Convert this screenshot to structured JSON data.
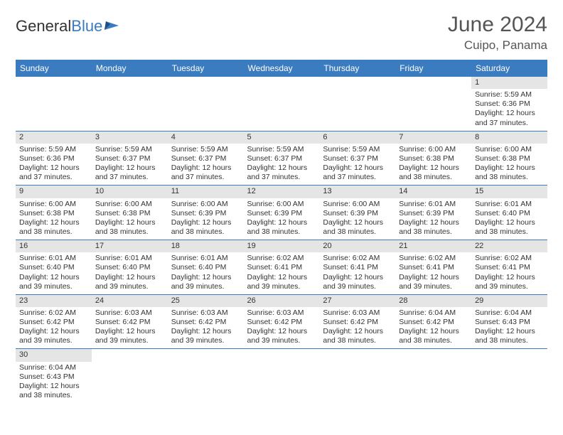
{
  "logo": {
    "text1": "General",
    "text2": "Blue"
  },
  "title": "June 2024",
  "location": "Cuipo, Panama",
  "columns": [
    "Sunday",
    "Monday",
    "Tuesday",
    "Wednesday",
    "Thursday",
    "Friday",
    "Saturday"
  ],
  "colors": {
    "header_bg": "#3b7bbf",
    "header_text": "#ffffff",
    "daynum_bg": "#e5e5e5",
    "border": "#3b7bbf",
    "text": "#333333",
    "title_text": "#555555"
  },
  "fonts": {
    "month_title_pt": 30,
    "location_pt": 17,
    "column_header_pt": 12,
    "daynum_pt": 11,
    "info_pt": 10.5
  },
  "weeks": [
    [
      null,
      null,
      null,
      null,
      null,
      null,
      {
        "n": "1",
        "sr": "Sunrise: 5:59 AM",
        "ss": "Sunset: 6:36 PM",
        "dl": "Daylight: 12 hours and 37 minutes."
      }
    ],
    [
      {
        "n": "2",
        "sr": "Sunrise: 5:59 AM",
        "ss": "Sunset: 6:36 PM",
        "dl": "Daylight: 12 hours and 37 minutes."
      },
      {
        "n": "3",
        "sr": "Sunrise: 5:59 AM",
        "ss": "Sunset: 6:37 PM",
        "dl": "Daylight: 12 hours and 37 minutes."
      },
      {
        "n": "4",
        "sr": "Sunrise: 5:59 AM",
        "ss": "Sunset: 6:37 PM",
        "dl": "Daylight: 12 hours and 37 minutes."
      },
      {
        "n": "5",
        "sr": "Sunrise: 5:59 AM",
        "ss": "Sunset: 6:37 PM",
        "dl": "Daylight: 12 hours and 37 minutes."
      },
      {
        "n": "6",
        "sr": "Sunrise: 5:59 AM",
        "ss": "Sunset: 6:37 PM",
        "dl": "Daylight: 12 hours and 37 minutes."
      },
      {
        "n": "7",
        "sr": "Sunrise: 6:00 AM",
        "ss": "Sunset: 6:38 PM",
        "dl": "Daylight: 12 hours and 38 minutes."
      },
      {
        "n": "8",
        "sr": "Sunrise: 6:00 AM",
        "ss": "Sunset: 6:38 PM",
        "dl": "Daylight: 12 hours and 38 minutes."
      }
    ],
    [
      {
        "n": "9",
        "sr": "Sunrise: 6:00 AM",
        "ss": "Sunset: 6:38 PM",
        "dl": "Daylight: 12 hours and 38 minutes."
      },
      {
        "n": "10",
        "sr": "Sunrise: 6:00 AM",
        "ss": "Sunset: 6:38 PM",
        "dl": "Daylight: 12 hours and 38 minutes."
      },
      {
        "n": "11",
        "sr": "Sunrise: 6:00 AM",
        "ss": "Sunset: 6:39 PM",
        "dl": "Daylight: 12 hours and 38 minutes."
      },
      {
        "n": "12",
        "sr": "Sunrise: 6:00 AM",
        "ss": "Sunset: 6:39 PM",
        "dl": "Daylight: 12 hours and 38 minutes."
      },
      {
        "n": "13",
        "sr": "Sunrise: 6:00 AM",
        "ss": "Sunset: 6:39 PM",
        "dl": "Daylight: 12 hours and 38 minutes."
      },
      {
        "n": "14",
        "sr": "Sunrise: 6:01 AM",
        "ss": "Sunset: 6:39 PM",
        "dl": "Daylight: 12 hours and 38 minutes."
      },
      {
        "n": "15",
        "sr": "Sunrise: 6:01 AM",
        "ss": "Sunset: 6:40 PM",
        "dl": "Daylight: 12 hours and 38 minutes."
      }
    ],
    [
      {
        "n": "16",
        "sr": "Sunrise: 6:01 AM",
        "ss": "Sunset: 6:40 PM",
        "dl": "Daylight: 12 hours and 39 minutes."
      },
      {
        "n": "17",
        "sr": "Sunrise: 6:01 AM",
        "ss": "Sunset: 6:40 PM",
        "dl": "Daylight: 12 hours and 39 minutes."
      },
      {
        "n": "18",
        "sr": "Sunrise: 6:01 AM",
        "ss": "Sunset: 6:40 PM",
        "dl": "Daylight: 12 hours and 39 minutes."
      },
      {
        "n": "19",
        "sr": "Sunrise: 6:02 AM",
        "ss": "Sunset: 6:41 PM",
        "dl": "Daylight: 12 hours and 39 minutes."
      },
      {
        "n": "20",
        "sr": "Sunrise: 6:02 AM",
        "ss": "Sunset: 6:41 PM",
        "dl": "Daylight: 12 hours and 39 minutes."
      },
      {
        "n": "21",
        "sr": "Sunrise: 6:02 AM",
        "ss": "Sunset: 6:41 PM",
        "dl": "Daylight: 12 hours and 39 minutes."
      },
      {
        "n": "22",
        "sr": "Sunrise: 6:02 AM",
        "ss": "Sunset: 6:41 PM",
        "dl": "Daylight: 12 hours and 39 minutes."
      }
    ],
    [
      {
        "n": "23",
        "sr": "Sunrise: 6:02 AM",
        "ss": "Sunset: 6:42 PM",
        "dl": "Daylight: 12 hours and 39 minutes."
      },
      {
        "n": "24",
        "sr": "Sunrise: 6:03 AM",
        "ss": "Sunset: 6:42 PM",
        "dl": "Daylight: 12 hours and 39 minutes."
      },
      {
        "n": "25",
        "sr": "Sunrise: 6:03 AM",
        "ss": "Sunset: 6:42 PM",
        "dl": "Daylight: 12 hours and 39 minutes."
      },
      {
        "n": "26",
        "sr": "Sunrise: 6:03 AM",
        "ss": "Sunset: 6:42 PM",
        "dl": "Daylight: 12 hours and 39 minutes."
      },
      {
        "n": "27",
        "sr": "Sunrise: 6:03 AM",
        "ss": "Sunset: 6:42 PM",
        "dl": "Daylight: 12 hours and 38 minutes."
      },
      {
        "n": "28",
        "sr": "Sunrise: 6:04 AM",
        "ss": "Sunset: 6:42 PM",
        "dl": "Daylight: 12 hours and 38 minutes."
      },
      {
        "n": "29",
        "sr": "Sunrise: 6:04 AM",
        "ss": "Sunset: 6:43 PM",
        "dl": "Daylight: 12 hours and 38 minutes."
      }
    ],
    [
      {
        "n": "30",
        "sr": "Sunrise: 6:04 AM",
        "ss": "Sunset: 6:43 PM",
        "dl": "Daylight: 12 hours and 38 minutes."
      },
      null,
      null,
      null,
      null,
      null,
      null
    ]
  ]
}
